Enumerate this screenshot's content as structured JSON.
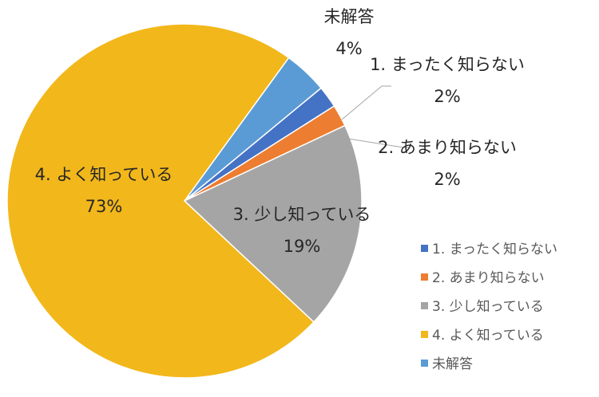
{
  "chart_data": {
    "type": "pie",
    "title": "",
    "categories": [
      "1. まったく知らない",
      "2. あまり知らない",
      "3. 少し知っている",
      "4. よく知っている",
      "未解答"
    ],
    "values": [
      2,
      2,
      19,
      73,
      4
    ],
    "value_labels": [
      "2%",
      "2%",
      "19%",
      "73%",
      "4%"
    ],
    "colors": [
      "#4472c4",
      "#ed7d31",
      "#a5a5a5",
      "#f2b71b",
      "#5b9bd5"
    ],
    "legend": {
      "position": "right",
      "entries": [
        "1. まったく知らない",
        "2. あまり知らない",
        "3. 少し知っている",
        "4. よく知っている",
        "未解答"
      ]
    }
  }
}
